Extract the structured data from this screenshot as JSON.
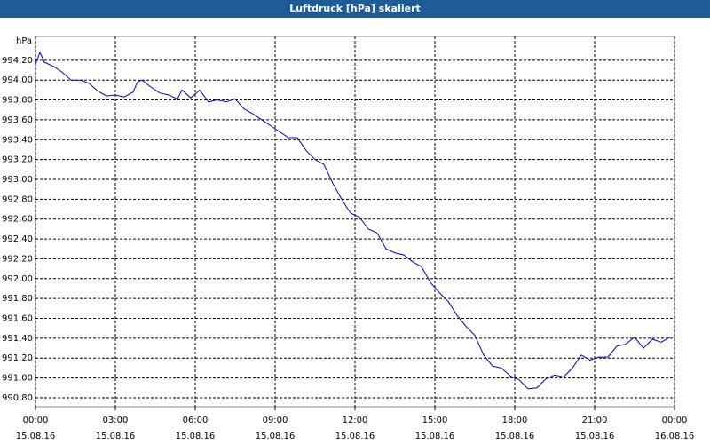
{
  "chart_data": {
    "type": "line",
    "title": "Luftdruck [hPa] skaliert",
    "y_label": "hPa",
    "color": "#0000cc",
    "grid": true,
    "x": [
      "15.08.16 00:00",
      "15.08.16 00:10",
      "15.08.16 00:20",
      "15.08.16 00:40",
      "15.08.16 01:00",
      "15.08.16 01:20",
      "15.08.16 01:40",
      "15.08.16 02:00",
      "15.08.16 02:20",
      "15.08.16 02:40",
      "15.08.16 03:00",
      "15.08.16 03:20",
      "15.08.16 03:40",
      "15.08.16 03:50",
      "15.08.16 04:00",
      "15.08.16 04:20",
      "15.08.16 04:40",
      "15.08.16 05:00",
      "15.08.16 05:20",
      "15.08.16 05:30",
      "15.08.16 05:50",
      "15.08.16 06:10",
      "15.08.16 06:30",
      "15.08.16 06:50",
      "15.08.16 07:10",
      "15.08.16 07:30",
      "15.08.16 07:50",
      "15.08.16 08:10",
      "15.08.16 08:30",
      "15.08.16 08:50",
      "15.08.16 09:10",
      "15.08.16 09:30",
      "15.08.16 09:50",
      "15.08.16 10:10",
      "15.08.16 10:30",
      "15.08.16 10:50",
      "15.08.16 11:10",
      "15.08.16 11:30",
      "15.08.16 11:50",
      "15.08.16 12:10",
      "15.08.16 12:30",
      "15.08.16 12:50",
      "15.08.16 13:10",
      "15.08.16 13:30",
      "15.08.16 13:50",
      "15.08.16 14:10",
      "15.08.16 14:30",
      "15.08.16 14:50",
      "15.08.16 15:10",
      "15.08.16 15:30",
      "15.08.16 15:50",
      "15.08.16 16:10",
      "15.08.16 16:30",
      "15.08.16 16:50",
      "15.08.16 17:10",
      "15.08.16 17:30",
      "15.08.16 17:50",
      "15.08.16 18:10",
      "15.08.16 18:30",
      "15.08.16 18:50",
      "15.08.16 19:10",
      "15.08.16 19:30",
      "15.08.16 19:50",
      "15.08.16 20:10",
      "15.08.16 20:30",
      "15.08.16 20:50",
      "15.08.16 21:10",
      "15.08.16 21:30",
      "15.08.16 21:50",
      "15.08.16 22:10",
      "15.08.16 22:30",
      "15.08.16 22:50",
      "15.08.16 23:10",
      "15.08.16 23:30",
      "15.08.16 23:50"
    ],
    "values": [
      994.16,
      994.28,
      994.18,
      994.14,
      994.08,
      994.0,
      994.0,
      993.97,
      993.89,
      993.84,
      993.85,
      993.83,
      993.88,
      993.98,
      994.0,
      993.93,
      993.87,
      993.85,
      993.81,
      993.9,
      993.82,
      993.9,
      993.78,
      993.8,
      993.78,
      993.81,
      993.71,
      993.66,
      993.6,
      993.54,
      993.48,
      993.42,
      993.42,
      993.29,
      993.2,
      993.15,
      992.96,
      992.8,
      992.66,
      992.62,
      992.5,
      992.46,
      992.3,
      992.26,
      992.24,
      992.17,
      992.12,
      991.96,
      991.86,
      991.77,
      991.63,
      991.52,
      991.43,
      991.23,
      991.12,
      991.1,
      991.02,
      990.98,
      990.89,
      990.9,
      990.99,
      991.03,
      991.01,
      991.1,
      991.23,
      991.18,
      991.21,
      991.21,
      991.32,
      991.34,
      991.41,
      991.3,
      991.39,
      991.36,
      991.41
    ],
    "xlim": [
      "15.08.16 00:00",
      "16.08.16 00:00"
    ],
    "xticks": [
      {
        "value": "15.08.16 00:00",
        "label": "00:00\n15.08.16"
      },
      {
        "value": "15.08.16 03:00",
        "label": "03:00\n15.08.16"
      },
      {
        "value": "15.08.16 06:00",
        "label": "06:00\n15.08.16"
      },
      {
        "value": "15.08.16 09:00",
        "label": "09:00\n15.08.16"
      },
      {
        "value": "15.08.16 12:00",
        "label": "12:00\n15.08.16"
      },
      {
        "value": "15.08.16 15:00",
        "label": "15:00\n15.08.16"
      },
      {
        "value": "15.08.16 18:00",
        "label": "18:00\n15.08.16"
      },
      {
        "value": "15.08.16 21:00",
        "label": "21:00\n15.08.16"
      },
      {
        "value": "16.08.16 00:00",
        "label": "00:00\n16.08.16"
      }
    ],
    "ylim": [
      990.71,
      994.44
    ],
    "yticks": [
      {
        "value": 990.8,
        "label": "990,80"
      },
      {
        "value": 991.0,
        "label": "991,00"
      },
      {
        "value": 991.2,
        "label": "991,20"
      },
      {
        "value": 991.4,
        "label": "991,40"
      },
      {
        "value": 991.6,
        "label": "991,60"
      },
      {
        "value": 991.8,
        "label": "991,80"
      },
      {
        "value": 992.0,
        "label": "992,00"
      },
      {
        "value": 992.2,
        "label": "992,20"
      },
      {
        "value": 992.4,
        "label": "992,40"
      },
      {
        "value": 992.6,
        "label": "992,60"
      },
      {
        "value": 992.8,
        "label": "992,80"
      },
      {
        "value": 993.0,
        "label": "993,00"
      },
      {
        "value": 993.2,
        "label": "993,20"
      },
      {
        "value": 993.4,
        "label": "993,40"
      },
      {
        "value": 993.6,
        "label": "993,60"
      },
      {
        "value": 993.8,
        "label": "993,80"
      },
      {
        "value": 994.0,
        "label": "994,00"
      },
      {
        "value": 994.2,
        "label": "994,20"
      }
    ]
  }
}
